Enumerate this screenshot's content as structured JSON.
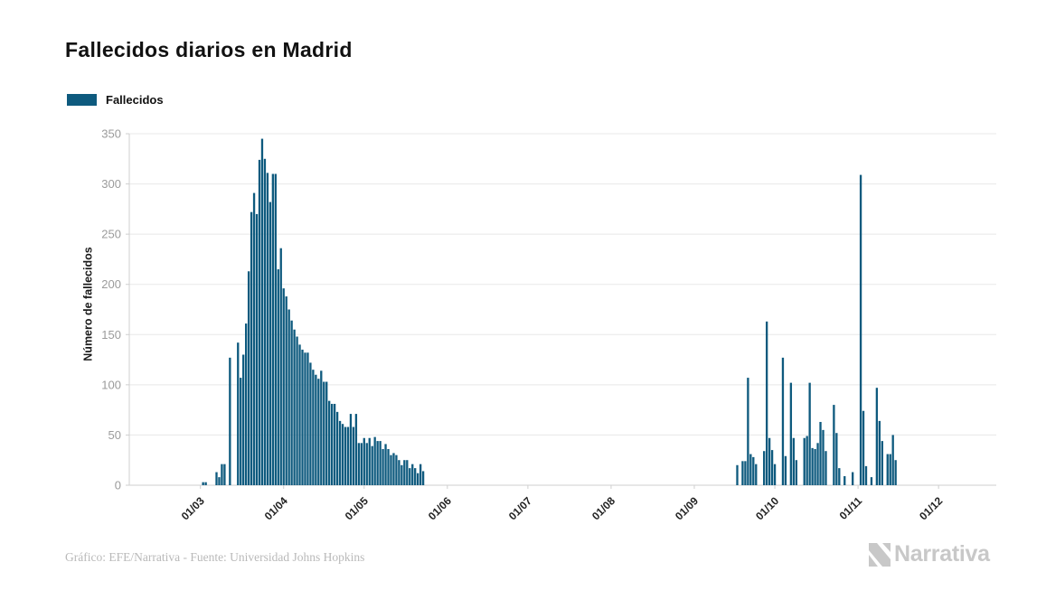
{
  "header": {
    "title": "Fallecidos diarios en Madrid"
  },
  "legend": {
    "items": [
      {
        "label": "Fallecidos",
        "color": "#0e5a7e"
      }
    ]
  },
  "footer": {
    "credit": "Gráfico: EFE/Narrativa - Fuente: Universidad Johns Hopkins",
    "logo_text": "Narrativa"
  },
  "colors": {
    "bar": "#0e5a7e",
    "grid": "#e8e8e8",
    "axis": "#cfcfcf",
    "y_tick_text": "#9b9b9b",
    "x_tick_text": "#222222",
    "logo_gray": "#c8c8c8"
  },
  "chart_data": {
    "type": "bar",
    "title": "Fallecidos diarios en Madrid",
    "xlabel": "",
    "ylabel": "Número de fallecidos",
    "series_name": "Fallecidos",
    "bar_color": "#0e5a7e",
    "grid": true,
    "legend_position": "top-left",
    "ylim": [
      0,
      350
    ],
    "y_ticks": [
      0,
      50,
      100,
      150,
      200,
      250,
      300,
      350
    ],
    "x_domain": [
      "2020-02-04",
      "2020-12-22"
    ],
    "x_ticks": [
      {
        "date": "2020-03-01",
        "label": "01/03"
      },
      {
        "date": "2020-04-01",
        "label": "01/04"
      },
      {
        "date": "2020-05-01",
        "label": "01/05"
      },
      {
        "date": "2020-06-01",
        "label": "01/06"
      },
      {
        "date": "2020-07-01",
        "label": "01/07"
      },
      {
        "date": "2020-08-01",
        "label": "01/08"
      },
      {
        "date": "2020-09-01",
        "label": "01/09"
      },
      {
        "date": "2020-10-01",
        "label": "01/10"
      },
      {
        "date": "2020-11-01",
        "label": "01/11"
      },
      {
        "date": "2020-12-01",
        "label": "01/12"
      }
    ],
    "unlisted_days_value": 0,
    "daily_values": {
      "2020-03-02": 3,
      "2020-03-03": 3,
      "2020-03-07": 13,
      "2020-03-08": 8,
      "2020-03-09": 21,
      "2020-03-10": 21,
      "2020-03-12": 127,
      "2020-03-15": 142,
      "2020-03-16": 107,
      "2020-03-17": 130,
      "2020-03-18": 161,
      "2020-03-19": 213,
      "2020-03-20": 272,
      "2020-03-21": 291,
      "2020-03-22": 270,
      "2020-03-23": 324,
      "2020-03-24": 345,
      "2020-03-25": 325,
      "2020-03-26": 311,
      "2020-03-27": 282,
      "2020-03-28": 310,
      "2020-03-29": 310,
      "2020-03-30": 215,
      "2020-03-31": 236,
      "2020-04-01": 196,
      "2020-04-02": 188,
      "2020-04-03": 175,
      "2020-04-04": 164,
      "2020-04-05": 155,
      "2020-04-06": 148,
      "2020-04-07": 140,
      "2020-04-08": 135,
      "2020-04-09": 132,
      "2020-04-10": 132,
      "2020-04-11": 122,
      "2020-04-12": 115,
      "2020-04-13": 110,
      "2020-04-14": 106,
      "2020-04-15": 114,
      "2020-04-16": 103,
      "2020-04-17": 103,
      "2020-04-18": 84,
      "2020-04-19": 81,
      "2020-04-20": 81,
      "2020-04-21": 73,
      "2020-04-22": 64,
      "2020-04-23": 61,
      "2020-04-24": 58,
      "2020-04-25": 58,
      "2020-04-26": 71,
      "2020-04-27": 58,
      "2020-04-28": 71,
      "2020-04-29": 42,
      "2020-04-30": 42,
      "2020-05-01": 47,
      "2020-05-02": 42,
      "2020-05-03": 47,
      "2020-05-04": 39,
      "2020-05-05": 48,
      "2020-05-06": 44,
      "2020-05-07": 44,
      "2020-05-08": 36,
      "2020-05-09": 41,
      "2020-05-10": 36,
      "2020-05-11": 30,
      "2020-05-12": 32,
      "2020-05-13": 30,
      "2020-05-14": 25,
      "2020-05-15": 20,
      "2020-05-16": 25,
      "2020-05-17": 25,
      "2020-05-18": 17,
      "2020-05-19": 21,
      "2020-05-20": 17,
      "2020-05-21": 12,
      "2020-05-22": 21,
      "2020-05-23": 14,
      "2020-09-17": 20,
      "2020-09-19": 24,
      "2020-09-20": 24,
      "2020-09-21": 107,
      "2020-09-22": 31,
      "2020-09-23": 28,
      "2020-09-24": 21,
      "2020-09-27": 34,
      "2020-09-28": 163,
      "2020-09-29": 47,
      "2020-09-30": 35,
      "2020-10-01": 21,
      "2020-10-04": 127,
      "2020-10-05": 29,
      "2020-10-07": 102,
      "2020-10-08": 47,
      "2020-10-09": 25,
      "2020-10-12": 47,
      "2020-10-13": 49,
      "2020-10-14": 102,
      "2020-10-15": 37,
      "2020-10-16": 36,
      "2020-10-17": 42,
      "2020-10-18": 63,
      "2020-10-19": 55,
      "2020-10-20": 34,
      "2020-10-23": 80,
      "2020-10-24": 52,
      "2020-10-25": 17,
      "2020-10-27": 9,
      "2020-10-30": 13,
      "2020-11-02": 309,
      "2020-11-03": 74,
      "2020-11-04": 19,
      "2020-11-06": 8,
      "2020-11-08": 97,
      "2020-11-09": 64,
      "2020-11-10": 44,
      "2020-11-12": 31,
      "2020-11-13": 31,
      "2020-11-14": 50,
      "2020-11-15": 25
    }
  }
}
